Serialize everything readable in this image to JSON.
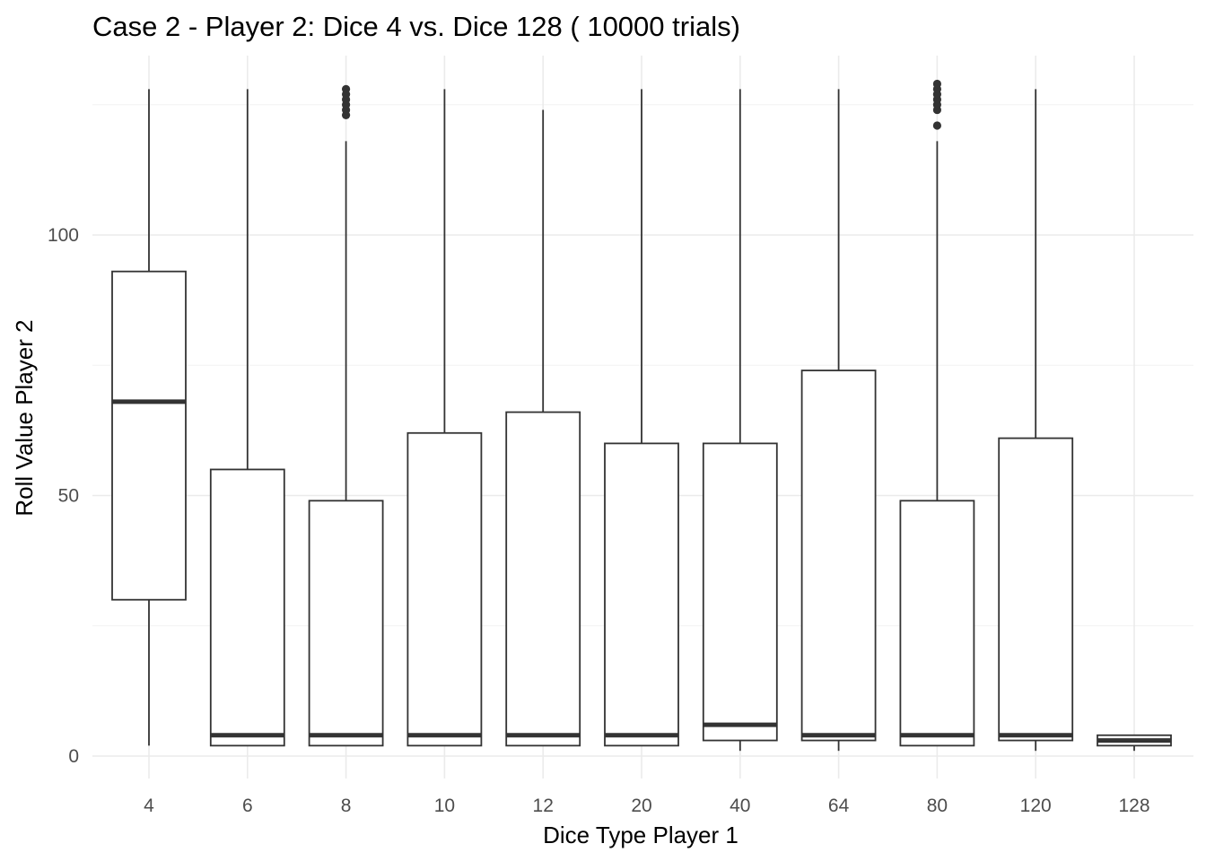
{
  "chart_data": {
    "type": "boxplot",
    "title": "Case 2 - Player 2: Dice 4 vs. Dice 128 ( 10000 trials)",
    "xlabel": "Dice Type Player 1",
    "ylabel": "Roll Value Player 2",
    "categories": [
      "4",
      "6",
      "8",
      "10",
      "12",
      "20",
      "40",
      "64",
      "80",
      "120",
      "128"
    ],
    "yticks": [
      0,
      50,
      100
    ],
    "ylim": [
      -4,
      134
    ],
    "grid": true,
    "legend": "none",
    "boxes": [
      {
        "category": "4",
        "min": 2,
        "q1": 30,
        "median": 68,
        "q3": 93,
        "max": 128,
        "outliers": []
      },
      {
        "category": "6",
        "min": 2,
        "q1": 2,
        "median": 4,
        "q3": 55,
        "max": 128,
        "outliers": []
      },
      {
        "category": "8",
        "min": 2,
        "q1": 2,
        "median": 4,
        "q3": 49,
        "max": 118,
        "outliers": [
          123,
          124,
          125,
          126,
          127,
          128
        ]
      },
      {
        "category": "10",
        "min": 2,
        "q1": 2,
        "median": 4,
        "q3": 62,
        "max": 128,
        "outliers": []
      },
      {
        "category": "12",
        "min": 2,
        "q1": 2,
        "median": 4,
        "q3": 66,
        "max": 124,
        "outliers": []
      },
      {
        "category": "20",
        "min": 2,
        "q1": 2,
        "median": 4,
        "q3": 60,
        "max": 128,
        "outliers": []
      },
      {
        "category": "40",
        "min": 1,
        "q1": 3,
        "median": 6,
        "q3": 60,
        "max": 128,
        "outliers": []
      },
      {
        "category": "64",
        "min": 1,
        "q1": 3,
        "median": 4,
        "q3": 74,
        "max": 128,
        "outliers": []
      },
      {
        "category": "80",
        "min": 2,
        "q1": 2,
        "median": 4,
        "q3": 49,
        "max": 118,
        "outliers": [
          121,
          124,
          125,
          126,
          127,
          128,
          129
        ]
      },
      {
        "category": "120",
        "min": 1,
        "q1": 3,
        "median": 4,
        "q3": 61,
        "max": 128,
        "outliers": []
      },
      {
        "category": "128",
        "min": 1,
        "q1": 2,
        "median": 3,
        "q3": 4,
        "max": 4,
        "outliers": []
      }
    ]
  }
}
